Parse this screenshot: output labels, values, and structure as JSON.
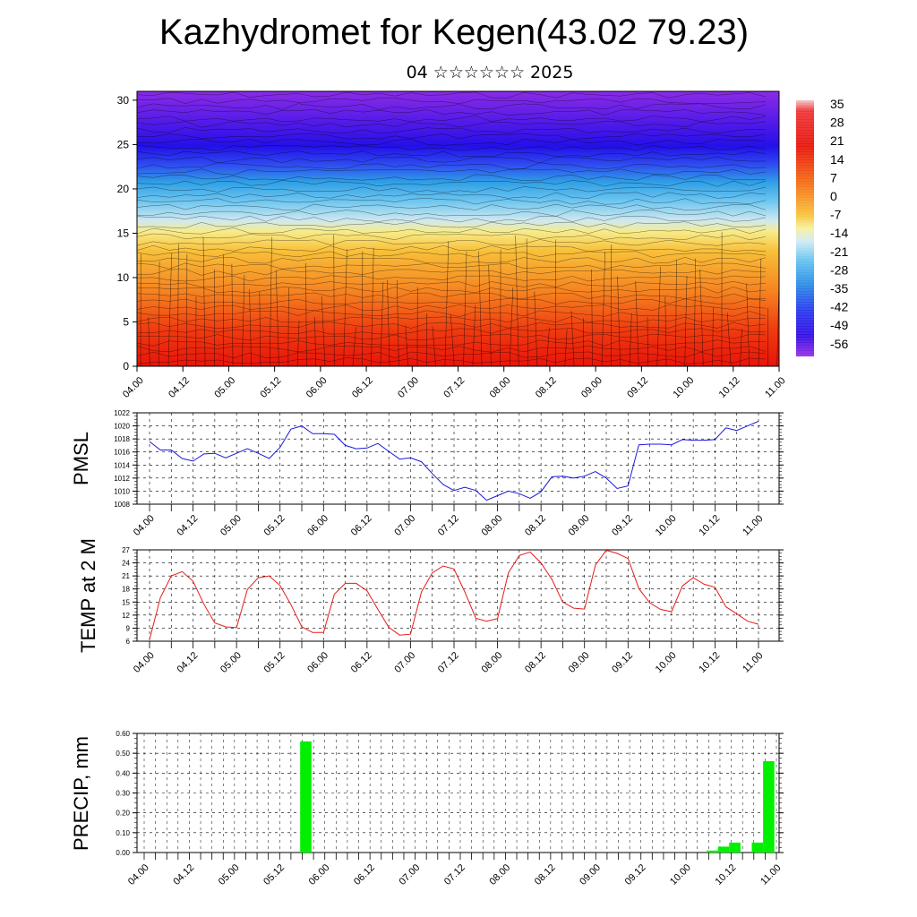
{
  "page": {
    "title": "Kazhydromet for Kegen(43.02 79.23)",
    "subtitle": "04 ☆☆☆☆☆☆ 2025"
  },
  "chart_data": [
    {
      "type": "heatmap",
      "description_axis": "vertical cross-section with wind barbs",
      "x_ticks": [
        "04.00",
        "04.12",
        "05.00",
        "05.12",
        "06.00",
        "06.12",
        "07.00",
        "07.12",
        "08.00",
        "08.12",
        "09.00",
        "09.12",
        "10.00",
        "10.12",
        "11.00"
      ],
      "y_ticks": [
        0,
        5,
        10,
        15,
        20,
        25,
        30
      ],
      "ylim": [
        0,
        31
      ],
      "colorbar_labels": [
        "35",
        "28",
        "21",
        "14",
        "7",
        "0",
        "-7",
        "-14",
        "-21",
        "-28",
        "-35",
        "-42",
        "-49",
        "-56"
      ],
      "colorbar_range": [
        -60,
        40
      ],
      "colors": {
        "warm": "#e8140a",
        "mid": "#f5d020",
        "cool": "#38a8e8",
        "cold": "#2b10ea",
        "top": "#8a2be6"
      }
    },
    {
      "type": "line",
      "ylabel": "PMSL",
      "ylim": [
        1008,
        1022
      ],
      "y_ticks": [
        1008,
        1010,
        1012,
        1014,
        1016,
        1018,
        1020,
        1022
      ],
      "x_ticks": [
        "04.00",
        "04.12",
        "05.00",
        "05.12",
        "06.00",
        "06.12",
        "07.00",
        "07.12",
        "08.00",
        "08.12",
        "09.00",
        "09.12",
        "10.00",
        "10.12",
        "11.00"
      ],
      "color": "#1a1adc",
      "x": [
        0,
        3,
        6,
        9,
        12,
        15,
        18,
        21,
        24,
        27,
        30,
        33,
        36,
        39,
        42,
        45,
        48,
        51,
        54,
        57,
        60,
        63,
        66,
        69,
        72,
        75,
        78,
        81,
        84,
        87,
        90,
        93,
        96,
        99,
        102,
        105,
        108,
        111,
        114,
        117,
        120,
        123,
        126,
        129,
        132,
        135,
        138,
        141,
        144,
        147,
        150,
        153,
        156,
        159,
        162,
        165,
        168
      ],
      "values": [
        1017.6,
        1016.3,
        1016.3,
        1015,
        1014.6,
        1015.7,
        1015.8,
        1015.1,
        1015.8,
        1016.5,
        1015.8,
        1015,
        1016.7,
        1019.5,
        1020,
        1018.8,
        1018.8,
        1018.7,
        1017,
        1016.5,
        1016.6,
        1017.3,
        1016.1,
        1014.9,
        1015.1,
        1014.5,
        1012.7,
        1011,
        1010.1,
        1010.6,
        1010.1,
        1008.6,
        1009.3,
        1010,
        1009.6,
        1008.9,
        1009.9,
        1012.2,
        1012.3,
        1012,
        1012.3,
        1013,
        1012,
        1010.4,
        1010.8,
        1017.1,
        1017.2,
        1017.2,
        1017.1,
        1017.9,
        1017.8,
        1017.8,
        1017.9,
        1019.7,
        1019.3,
        1020,
        1020.7
      ]
    },
    {
      "type": "line",
      "ylabel": "TEMP at 2 M",
      "ylim": [
        6,
        27
      ],
      "y_ticks": [
        6,
        9,
        12,
        15,
        18,
        21,
        24,
        27
      ],
      "x_ticks": [
        "04.00",
        "04.12",
        "05.00",
        "05.12",
        "06.00",
        "06.12",
        "07.00",
        "07.12",
        "08.00",
        "08.12",
        "09.00",
        "09.12",
        "10.00",
        "10.12",
        "11.00"
      ],
      "color": "#e81a1a",
      "x": [
        0,
        3,
        6,
        9,
        12,
        15,
        18,
        21,
        24,
        27,
        30,
        33,
        36,
        39,
        42,
        45,
        48,
        51,
        54,
        57,
        60,
        63,
        66,
        69,
        72,
        75,
        78,
        81,
        84,
        87,
        90,
        93,
        96,
        99,
        102,
        105,
        108,
        111,
        114,
        117,
        120,
        123,
        126,
        129,
        132,
        135,
        138,
        141,
        144,
        147,
        150,
        153,
        156,
        159,
        162,
        165,
        168
      ],
      "values": [
        6.4,
        16,
        21,
        22,
        19.8,
        14.5,
        10.2,
        9.3,
        9.1,
        17.9,
        20.6,
        21,
        18.8,
        14.4,
        9.3,
        8,
        8,
        16.8,
        19.3,
        19.3,
        17.6,
        13.3,
        9.2,
        7.4,
        7.6,
        17.3,
        21.7,
        23.3,
        22.6,
        17.3,
        11.3,
        10.6,
        11.2,
        21.7,
        25.7,
        26.5,
        24,
        20.2,
        15,
        13.6,
        13.4,
        23.5,
        26.9,
        26.2,
        25,
        18.1,
        14.8,
        13.3,
        12.8,
        18.7,
        20.6,
        19.1,
        18.4,
        13.9,
        12.3,
        10.6,
        9.9
      ]
    },
    {
      "type": "bar",
      "ylabel": "PRECIP, mm",
      "ylim": [
        0,
        0.6
      ],
      "y_tick_labels": [
        "0.00",
        "0.10",
        "0.20",
        "0.30",
        "0.40",
        "0.50",
        "0.60"
      ],
      "x_ticks": [
        "04.00",
        "04.12",
        "05.00",
        "05.12",
        "06.00",
        "06.12",
        "07.00",
        "07.12",
        "08.00",
        "08.12",
        "09.00",
        "09.12",
        "10.00",
        "10.12",
        "11.00"
      ],
      "color": "#00f000",
      "bars": [
        {
          "x": 42,
          "value": 0.56
        },
        {
          "x": 150,
          "value": 0.01
        },
        {
          "x": 153,
          "value": 0.03
        },
        {
          "x": 156,
          "value": 0.05
        },
        {
          "x": 162,
          "value": 0.05
        },
        {
          "x": 165,
          "value": 0.46
        }
      ]
    }
  ]
}
